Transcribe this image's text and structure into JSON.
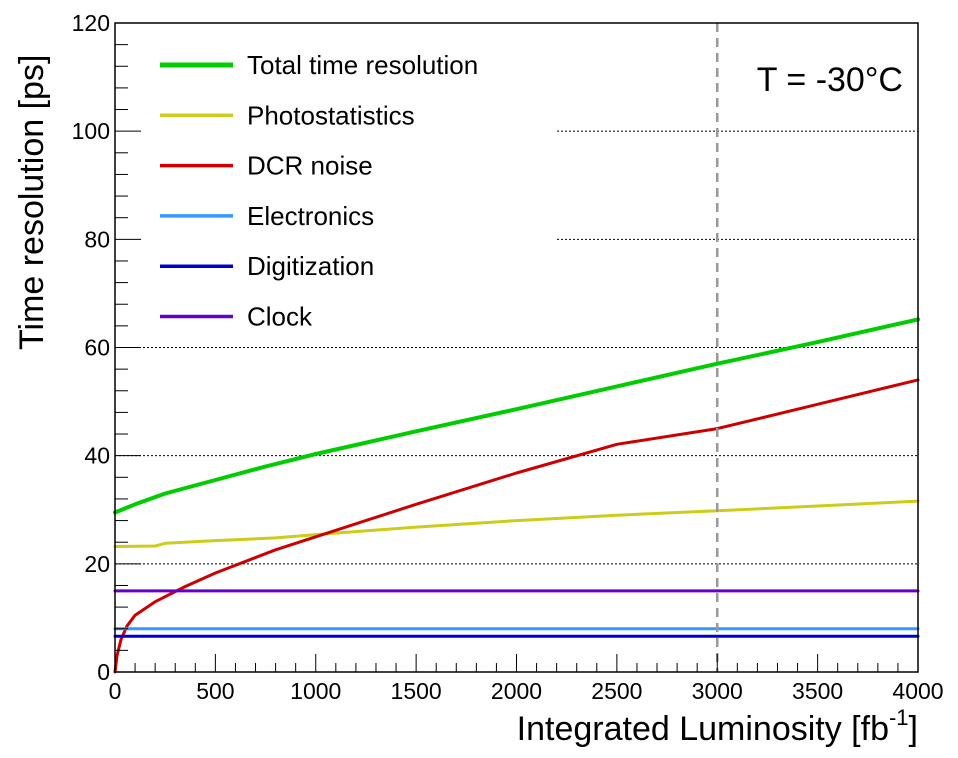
{
  "chart_data": {
    "type": "line",
    "xlabel": "Integrated Luminosity [fb",
    "xlabel_sup": "-1",
    "xlabel_end": "]",
    "ylabel": "Time resolution [ps]",
    "xlim": [
      0,
      4000
    ],
    "ylim": [
      0,
      120
    ],
    "x_ticks": [
      0,
      500,
      1000,
      1500,
      2000,
      2500,
      3000,
      3500,
      4000
    ],
    "y_ticks": [
      0,
      20,
      40,
      60,
      80,
      100,
      120
    ],
    "grid": "horizontal dotted",
    "legend_position": "top-left",
    "annotation": "T = -30°C",
    "vertical_marker": {
      "x": 3000,
      "style": "dashed",
      "color": "#999999"
    },
    "series": [
      {
        "name": "Total time resolution",
        "color": "#00cc00",
        "x": [
          0,
          100,
          250,
          500,
          750,
          1000,
          1500,
          2000,
          2500,
          3000,
          3500,
          4000
        ],
        "y": [
          29.5,
          31,
          33,
          35.5,
          38,
          40.3,
          44.5,
          48.6,
          52.8,
          57,
          61,
          65.2
        ]
      },
      {
        "name": "Photostatistics",
        "color": "#cccc1a",
        "x": [
          0,
          200,
          250,
          500,
          800,
          1000,
          1500,
          2000,
          2500,
          3000,
          3500,
          4000
        ],
        "y": [
          23.2,
          23.3,
          23.8,
          24.3,
          24.8,
          25.4,
          26.8,
          28,
          29,
          29.8,
          30.7,
          31.6
        ]
      },
      {
        "name": "DCR noise",
        "color": "#cc0000",
        "x": [
          0,
          10,
          30,
          60,
          100,
          200,
          350,
          500,
          800,
          1000,
          1500,
          2000,
          2500,
          3000,
          3500,
          4000
        ],
        "y": [
          0,
          3,
          6,
          8.5,
          10.5,
          13,
          15.8,
          18.3,
          22.6,
          25,
          31,
          36.8,
          42.1,
          45,
          49.5,
          54
        ]
      },
      {
        "name": "Electronics",
        "color": "#3399ff",
        "x": [
          0,
          4000
        ],
        "y": [
          8,
          8
        ]
      },
      {
        "name": "Digitization",
        "color": "#0000cc",
        "x": [
          0,
          4000
        ],
        "y": [
          6.6,
          6.6
        ]
      },
      {
        "name": "Clock",
        "color": "#6600cc",
        "x": [
          0,
          4000
        ],
        "y": [
          15,
          15
        ]
      }
    ]
  }
}
